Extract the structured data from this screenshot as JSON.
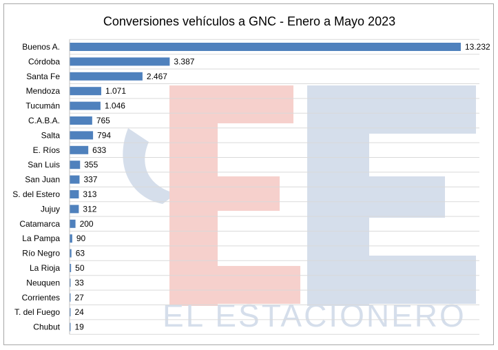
{
  "chart_data": {
    "type": "bar",
    "orientation": "horizontal",
    "title": "Conversiones vehículos a GNC - Enero a Mayo 2023",
    "categories": [
      "Buenos A.",
      "Córdoba",
      "Santa Fe",
      "Mendoza",
      "Tucumán",
      "C.A.B.A.",
      "Salta",
      "E. Ríos",
      "San Luis",
      "San Juan",
      "S. del  Estero",
      "Jujuy",
      "Catamarca",
      "La Pampa",
      "Río Negro",
      "La Rioja",
      "Neuquen",
      "Corrientes",
      "T. del Fuego",
      "Chubut"
    ],
    "values": [
      13232,
      3387,
      2467,
      1071,
      1046,
      765,
      794,
      633,
      355,
      337,
      313,
      312,
      200,
      90,
      63,
      50,
      33,
      27,
      24,
      19
    ],
    "value_labels": [
      "13.232",
      "3.387",
      "2.467",
      "1.071",
      "1.046",
      "765",
      "794",
      "633",
      "355",
      "337",
      "313",
      "312",
      "200",
      "90",
      "63",
      "50",
      "33",
      "27",
      "24",
      "19"
    ],
    "xlim": [
      0,
      13232
    ],
    "grid": true,
    "legend": "none",
    "bar_color": "#4f81bd"
  },
  "watermark": {
    "text": "EL ESTACIONERO",
    "colors": {
      "blue": "#d5deeb",
      "red": "#f6d0cc"
    }
  }
}
